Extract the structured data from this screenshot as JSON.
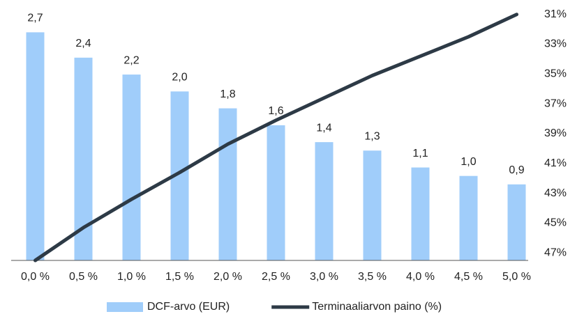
{
  "chart_data": {
    "type": "bar_line",
    "categories": [
      "0,0 %",
      "0,5 %",
      "1,0 %",
      "1,5 %",
      "2,0 %",
      "2,5 %",
      "3,0 %",
      "3,5 %",
      "4,0 %",
      "4,5 %",
      "5,0 %"
    ],
    "series": [
      {
        "name": "DCF-arvo (EUR)",
        "type": "bar",
        "color": "#a0cdfa",
        "values": [
          2.7,
          2.4,
          2.2,
          2.0,
          1.8,
          1.6,
          1.4,
          1.3,
          1.1,
          1.0,
          0.9
        ],
        "value_labels": [
          "2,7",
          "2,4",
          "2,2",
          "2,0",
          "1,8",
          "1,6",
          "1,4",
          "1,3",
          "1,1",
          "1,0",
          "0,9"
        ]
      },
      {
        "name": "Terminaaliarvon paino (%)",
        "type": "line",
        "color": "#2d3a46",
        "axis": "y2",
        "values": [
          47.5,
          45.3,
          43.4,
          41.6,
          39.7,
          38.1,
          36.6,
          35.1,
          33.8,
          32.5,
          31.0
        ]
      }
    ],
    "ylim": [
      0,
      3
    ],
    "y2lim": [
      47.5,
      30.5
    ],
    "y2ticks": [
      {
        "value": 31,
        "label": "31%"
      },
      {
        "value": 33,
        "label": "33%"
      },
      {
        "value": 35,
        "label": "35%"
      },
      {
        "value": 37,
        "label": "37%"
      },
      {
        "value": 39,
        "label": "39%"
      },
      {
        "value": 41,
        "label": "41%"
      },
      {
        "value": 43,
        "label": "43%"
      },
      {
        "value": 45,
        "label": "45%"
      },
      {
        "value": 47,
        "label": "47%"
      }
    ],
    "legend": "bottom"
  }
}
